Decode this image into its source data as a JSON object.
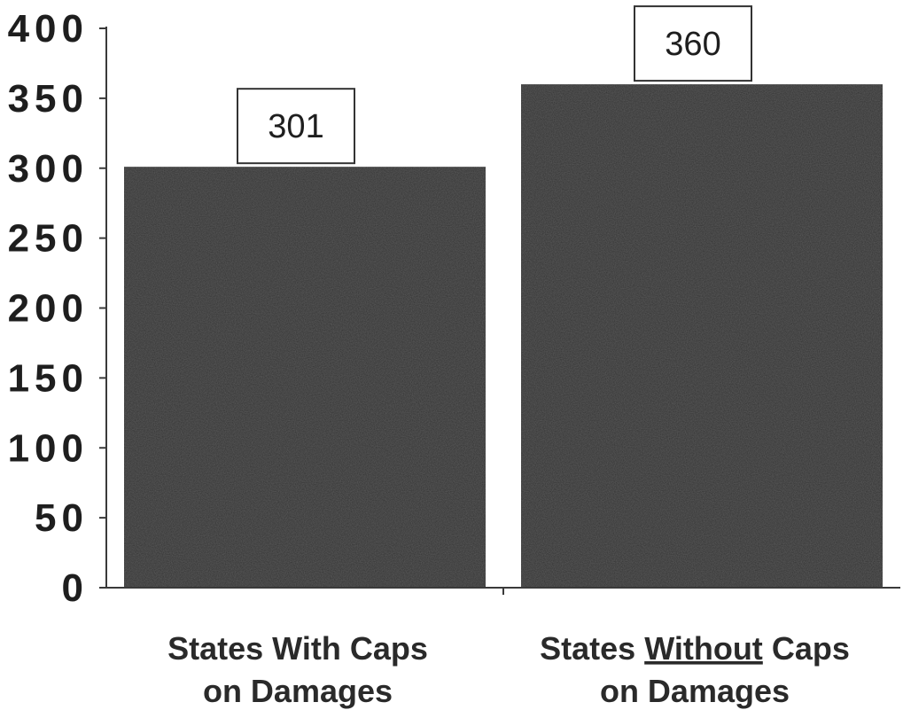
{
  "chart_data": {
    "type": "bar",
    "title": "",
    "xlabel": "",
    "ylabel": "",
    "ylim": [
      0,
      400
    ],
    "yticks": [
      0,
      50,
      100,
      150,
      200,
      250,
      300,
      350,
      400
    ],
    "yticklabels": [
      "0",
      "50",
      "100",
      "150",
      "200",
      "250",
      "300",
      "350",
      "400"
    ],
    "categories": [
      {
        "line1": [
          {
            "text": "States With Caps",
            "underline": false
          }
        ],
        "line2": "on Damages"
      },
      {
        "line1": [
          {
            "text": "States ",
            "underline": false
          },
          {
            "text": "Without",
            "underline": true
          },
          {
            "text": " Caps",
            "underline": false
          }
        ],
        "line2": "on Damages"
      }
    ],
    "values": [
      301,
      360
    ],
    "data_labels": [
      "301",
      "360"
    ],
    "grid": false,
    "colors": {
      "bar": "#2f2f2f",
      "axis": "#3a3a3a",
      "text": "#1e1e1e",
      "label_box_border": "#333333",
      "label_box_fill": "#ffffff"
    }
  }
}
